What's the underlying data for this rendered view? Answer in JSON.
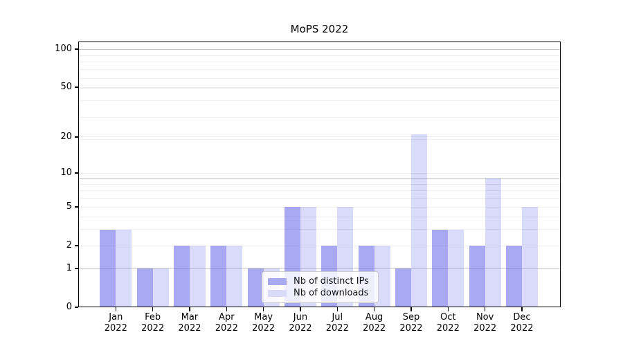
{
  "chart_data": {
    "type": "bar",
    "title": "MoPS 2022",
    "categories": [
      "Jan",
      "Feb",
      "Mar",
      "Apr",
      "May",
      "Jun",
      "Jul",
      "Aug",
      "Sep",
      "Oct",
      "Nov",
      "Dec"
    ],
    "year_label": "2022",
    "series": [
      {
        "name": "Nb of distinct IPs",
        "color": "rgba(88,88,232,0.52)",
        "legend_color": "#a9a9f2",
        "values": [
          3,
          1,
          2,
          2,
          1,
          5,
          2,
          2,
          1,
          3,
          2,
          2
        ]
      },
      {
        "name": "Nb of downloads",
        "color": "rgba(88,88,232,0.22)",
        "legend_color": "#dadaf9",
        "values": [
          3,
          1,
          2,
          2,
          1,
          5,
          5,
          2,
          21,
          3,
          9,
          5
        ]
      }
    ],
    "y_axis": {
      "scale": "log1p",
      "ticks": [
        0,
        1,
        2,
        5,
        10,
        20,
        50,
        100
      ],
      "tick_labels": [
        "0",
        "1",
        "2",
        "5",
        "10",
        "20",
        "50",
        "100"
      ],
      "ylim": [
        0,
        115
      ]
    },
    "x_axis": {
      "tick_labels_line1": [
        "Jan",
        "Feb",
        "Mar",
        "Apr",
        "May",
        "Jun",
        "Jul",
        "Aug",
        "Sep",
        "Oct",
        "Nov",
        "Dec"
      ],
      "tick_labels_line2": [
        "2022",
        "2022",
        "2022",
        "2022",
        "2022",
        "2022",
        "2022",
        "2022",
        "2022",
        "2022",
        "2022",
        "2022"
      ]
    },
    "grid": {
      "minor_values": [
        2,
        3,
        4,
        5,
        6,
        7,
        8,
        10,
        19,
        20,
        29,
        39,
        49,
        50,
        59,
        69,
        79,
        89
      ],
      "major_values": [
        1,
        9,
        99
      ],
      "minor_color": "#ededed",
      "major_color": "#c4c4c4"
    },
    "legend": {
      "position": "lower-center"
    },
    "colors": {
      "axis": "#000000",
      "background": "#ffffff"
    }
  }
}
